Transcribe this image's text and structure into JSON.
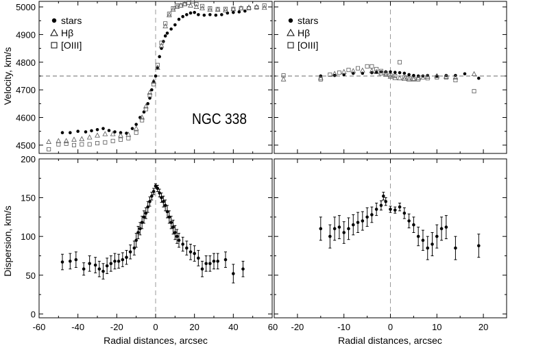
{
  "chart_data": [
    {
      "type": "scatter",
      "panel": "top-left",
      "title": "",
      "annotation": "NGC 338",
      "xlabel": "",
      "ylabel": "Velocity, km/s",
      "xlim": [
        -60,
        60
      ],
      "ylim": [
        4470,
        5020
      ],
      "xticks": [],
      "yticks": [
        4500,
        4600,
        4700,
        4800,
        4900,
        5000
      ],
      "hline": 4750,
      "vline": 0,
      "legend": {
        "placement": "top-left",
        "entries": [
          "stars",
          "Hβ",
          "[OIII]"
        ]
      },
      "series": [
        {
          "name": "stars",
          "marker": "circle-filled",
          "x": [
            -48,
            -44,
            -40,
            -36,
            -33,
            -30,
            -27,
            -24,
            -21,
            -18,
            -15,
            -12,
            -10,
            -8,
            -6,
            -4,
            -3,
            -2,
            -1,
            0,
            1,
            2,
            3,
            4,
            5,
            6,
            8,
            10,
            12,
            14,
            16,
            18,
            20,
            22,
            25,
            28,
            31,
            34,
            37,
            40,
            43,
            46
          ],
          "y": [
            4545,
            4545,
            4550,
            4548,
            4552,
            4556,
            4560,
            4553,
            4548,
            4545,
            4543,
            4560,
            4575,
            4600,
            4620,
            4650,
            4670,
            4700,
            4730,
            4750,
            4780,
            4820,
            4850,
            4875,
            4895,
            4905,
            4920,
            4935,
            4955,
            4965,
            4972,
            4978,
            4980,
            4972,
            4970,
            4972,
            4970,
            4972,
            4978,
            4980,
            4982,
            4985
          ]
        },
        {
          "name": "Hβ",
          "marker": "triangle-open",
          "x": [
            -55,
            -50,
            -46,
            -42,
            -38,
            -34,
            -30,
            -26,
            -22,
            -18,
            -14,
            -10,
            -7,
            -5,
            -3,
            -1,
            1,
            3,
            5,
            7,
            9,
            11,
            13,
            15,
            18,
            21,
            24,
            28,
            32,
            36,
            40,
            44,
            48,
            52,
            56
          ],
          "y": [
            4512,
            4515,
            4515,
            4520,
            4522,
            4528,
            4535,
            4540,
            4540,
            4535,
            4538,
            4560,
            4600,
            4640,
            4690,
            4730,
            4780,
            4860,
            4930,
            4970,
            4990,
            5000,
            5005,
            5010,
            5005,
            5000,
            4995,
            4990,
            4990,
            4988,
            4992,
            4995,
            4998,
            5000,
            4997
          ]
        },
        {
          "name": "[OIII]",
          "marker": "square-open",
          "x": [
            -55,
            -50,
            -46,
            -42,
            -38,
            -34,
            -30,
            -26,
            -22,
            -18,
            -14,
            -10,
            -7,
            -5,
            -3,
            -1,
            1,
            3,
            5,
            7,
            9,
            11,
            13,
            15,
            17,
            19,
            21,
            24,
            28,
            32,
            36,
            40,
            44,
            48,
            52,
            56
          ],
          "y": [
            4485,
            4503,
            4505,
            4500,
            4503,
            4503,
            4507,
            4510,
            4515,
            4520,
            4525,
            4545,
            4590,
            4630,
            4680,
            4720,
            4790,
            4870,
            4940,
            4975,
            4995,
            5005,
            5005,
            5010,
            5015,
            5020,
            5010,
            5003,
            4995,
            4992,
            4993,
            4993,
            4995,
            4995,
            4998,
            5005
          ]
        }
      ]
    },
    {
      "type": "scatter",
      "panel": "top-right",
      "title": "",
      "xlabel": "",
      "ylabel": "",
      "xlim": [
        -25,
        25
      ],
      "ylim": [
        4470,
        5020
      ],
      "hline": 4750,
      "vline": 0,
      "legend": {
        "placement": "top-left",
        "entries": [
          "stars",
          "Hβ",
          "[OIII]"
        ]
      },
      "series": [
        {
          "name": "stars",
          "marker": "circle-filled",
          "x": [
            -15,
            -12,
            -10,
            -8,
            -6,
            -4,
            -3,
            -2,
            -1,
            0,
            1,
            2,
            3,
            4,
            5,
            6,
            7,
            8,
            10,
            12,
            14,
            16,
            19
          ],
          "y": [
            4750,
            4752,
            4755,
            4760,
            4760,
            4762,
            4763,
            4765,
            4765,
            4765,
            4763,
            4762,
            4760,
            4755,
            4752,
            4750,
            4750,
            4752,
            4750,
            4752,
            4752,
            4758,
            4742
          ]
        },
        {
          "name": "Hβ",
          "marker": "triangle-open",
          "x": [
            -23,
            -15,
            -12,
            -10,
            -8,
            -6,
            -4,
            -3,
            -2,
            -1,
            0,
            1,
            2,
            3,
            4,
            5,
            6,
            7,
            8,
            10,
            12,
            14,
            18
          ],
          "y": [
            4738,
            4742,
            4758,
            4765,
            4768,
            4770,
            4768,
            4765,
            4760,
            4755,
            4748,
            4743,
            4742,
            4740,
            4738,
            4738,
            4742,
            4745,
            4748,
            4750,
            4748,
            4745,
            4757
          ]
        },
        {
          "name": "[OIII]",
          "marker": "square-open",
          "x": [
            -23,
            -15,
            -13,
            -11,
            -9,
            -7,
            -5,
            -4,
            -3,
            -2,
            -1,
            0,
            1,
            2,
            3,
            4,
            5,
            6,
            8,
            10,
            12,
            14,
            18
          ],
          "y": [
            4752,
            4738,
            4755,
            4762,
            4772,
            4778,
            4785,
            4785,
            4775,
            4768,
            4760,
            4752,
            4750,
            4800,
            4745,
            4742,
            4740,
            4738,
            4742,
            4745,
            4745,
            4735,
            4695
          ]
        }
      ]
    },
    {
      "type": "scatter",
      "panel": "bottom-left",
      "title": "",
      "xlabel": "Radial distances, arcsec",
      "ylabel": "Dispersion, km/s",
      "xlim": [
        -60,
        60
      ],
      "ylim": [
        -5,
        200
      ],
      "xticks": [
        -60,
        -40,
        -20,
        0,
        20,
        40,
        60
      ],
      "yticks": [
        0,
        50,
        100,
        150,
        200
      ],
      "vline": 0,
      "series": [
        {
          "name": "stars",
          "marker": "circle-filled",
          "x": [
            -48,
            -44,
            -41,
            -37,
            -34,
            -31,
            -29,
            -27,
            -25,
            -23,
            -21,
            -19,
            -17,
            -15,
            -13,
            -11,
            -10,
            -9,
            -8,
            -7,
            -6,
            -5,
            -4,
            -3,
            -2,
            -1,
            0,
            1,
            2,
            3,
            4,
            5,
            6,
            7,
            8,
            9,
            10,
            11,
            12,
            14,
            16,
            18,
            20,
            22,
            24,
            26,
            28,
            30,
            32,
            36,
            40,
            45
          ],
          "y": [
            67,
            68,
            70,
            58,
            65,
            63,
            58,
            55,
            62,
            65,
            68,
            68,
            70,
            73,
            80,
            85,
            95,
            105,
            110,
            118,
            125,
            130,
            138,
            145,
            152,
            158,
            165,
            162,
            156,
            150,
            145,
            140,
            132,
            125,
            118,
            112,
            105,
            100,
            95,
            90,
            85,
            80,
            78,
            72,
            58,
            65,
            65,
            68,
            68,
            70,
            52,
            58
          ],
          "err": [
            10,
            10,
            10,
            8,
            10,
            10,
            10,
            10,
            10,
            10,
            10,
            9,
            9,
            9,
            9,
            9,
            9,
            8,
            8,
            8,
            8,
            7,
            7,
            6,
            5,
            4,
            3,
            4,
            5,
            6,
            7,
            7,
            8,
            8,
            8,
            9,
            9,
            9,
            9,
            9,
            9,
            10,
            10,
            10,
            10,
            10,
            10,
            10,
            10,
            10,
            12,
            10
          ]
        }
      ]
    },
    {
      "type": "scatter",
      "panel": "bottom-right",
      "title": "",
      "xlabel": "Radial distances, arcsec",
      "ylabel": "",
      "xlim": [
        -25,
        25
      ],
      "ylim": [
        -5,
        200
      ],
      "xticks": [
        -20,
        -10,
        0,
        10,
        20
      ],
      "vline": 0,
      "series": [
        {
          "name": "stars",
          "marker": "circle-filled",
          "x": [
            -15,
            -13,
            -12,
            -11,
            -10,
            -9,
            -8,
            -7,
            -6,
            -5,
            -4,
            -3,
            -2,
            -1.5,
            -1,
            0,
            1,
            2,
            3,
            4,
            5,
            6,
            7,
            8,
            9,
            10,
            11,
            12,
            14,
            19
          ],
          "y": [
            110,
            100,
            110,
            112,
            105,
            110,
            115,
            118,
            120,
            125,
            128,
            135,
            140,
            152,
            145,
            135,
            134,
            138,
            130,
            120,
            115,
            100,
            95,
            85,
            90,
            100,
            110,
            112,
            85,
            88
          ],
          "err": [
            15,
            15,
            15,
            15,
            14,
            14,
            13,
            13,
            12,
            12,
            10,
            8,
            6,
            5,
            5,
            4,
            4,
            5,
            7,
            9,
            10,
            12,
            13,
            15,
            15,
            15,
            15,
            15,
            15,
            15
          ]
        }
      ]
    }
  ]
}
